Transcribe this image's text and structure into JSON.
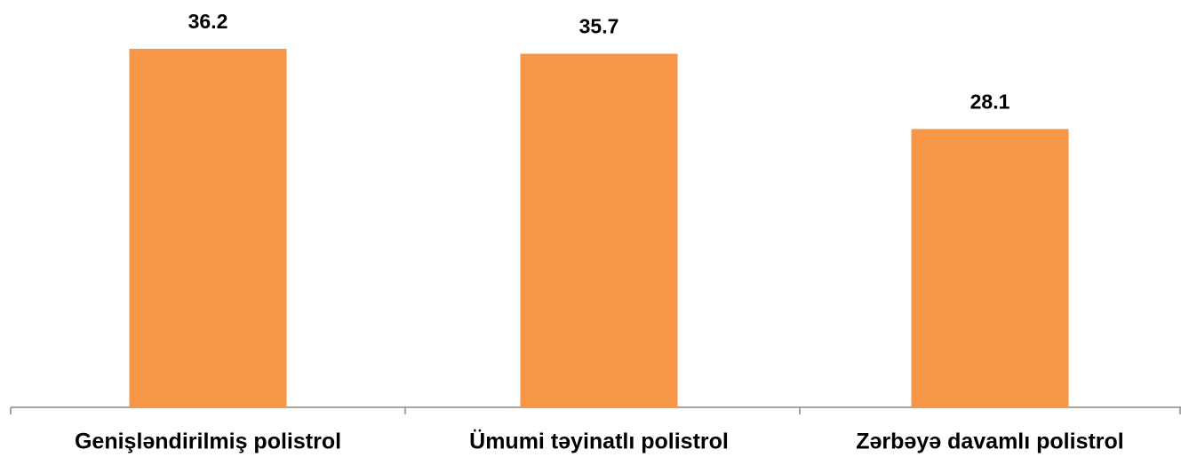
{
  "chart_data": {
    "type": "bar",
    "categories": [
      "Genişləndirilmiş polistrol",
      "Ümumi təyinatlı polistrol",
      "Zərbəyə davamlı polistrol"
    ],
    "values": [
      36.2,
      35.7,
      28.1
    ],
    "color": "#f79646"
  }
}
